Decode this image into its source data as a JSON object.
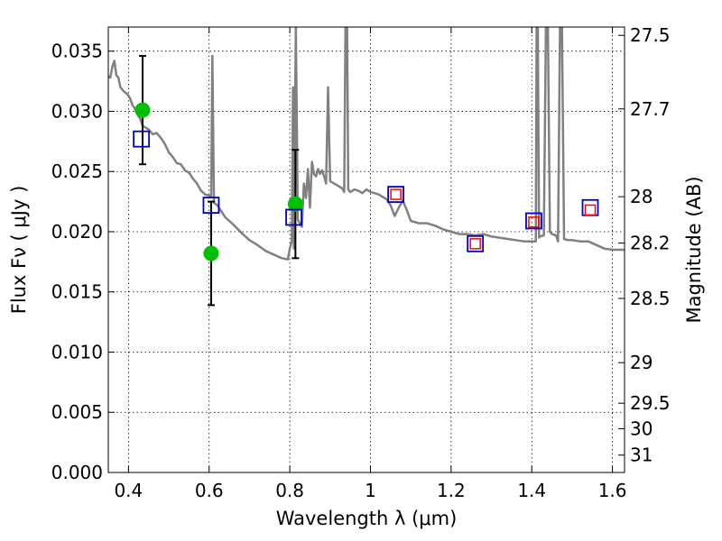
{
  "chart_data": {
    "type": "scatter",
    "xlabel": "Wavelength  λ (μm)",
    "ylabel": "Flux  Fν  ( μJy )",
    "y2label": "Magnitude (AB)",
    "xlim": [
      0.35,
      1.63
    ],
    "ylim": [
      0.0,
      0.037
    ],
    "grid": true,
    "x_ticks": [
      {
        "value": 0.4,
        "label": "0.4"
      },
      {
        "value": 0.6,
        "label": "0.6"
      },
      {
        "value": 0.8,
        "label": "0.8"
      },
      {
        "value": 1.0,
        "label": "1"
      },
      {
        "value": 1.2,
        "label": "1.2"
      },
      {
        "value": 1.4,
        "label": "1.4"
      },
      {
        "value": 1.6,
        "label": "1.6"
      }
    ],
    "y_ticks": [
      {
        "value": 0.0,
        "label": "0.000"
      },
      {
        "value": 0.005,
        "label": "0.005"
      },
      {
        "value": 0.01,
        "label": "0.010"
      },
      {
        "value": 0.015,
        "label": "0.015"
      },
      {
        "value": 0.02,
        "label": "0.020"
      },
      {
        "value": 0.025,
        "label": "0.025"
      },
      {
        "value": 0.03,
        "label": "0.030"
      },
      {
        "value": 0.035,
        "label": "0.035"
      }
    ],
    "y2_ticks": [
      {
        "value": 27.5,
        "label": "27.5"
      },
      {
        "value": 27.7,
        "label": "27.7"
      },
      {
        "value": 28.0,
        "label": "28"
      },
      {
        "value": 28.2,
        "label": "28.2"
      },
      {
        "value": 28.5,
        "label": "28.5"
      },
      {
        "value": 29.0,
        "label": "29"
      },
      {
        "value": 29.5,
        "label": "29.5"
      },
      {
        "value": 30.0,
        "label": "30"
      },
      {
        "value": 31.0,
        "label": "31"
      }
    ],
    "series": [
      {
        "kind": "line",
        "color": "#808080",
        "points": [
          [
            0.35,
            0.0329
          ],
          [
            0.355,
            0.0328
          ],
          [
            0.36,
            0.0337
          ],
          [
            0.365,
            0.0342
          ],
          [
            0.37,
            0.033
          ],
          [
            0.375,
            0.0328
          ],
          [
            0.38,
            0.032
          ],
          [
            0.385,
            0.0318
          ],
          [
            0.39,
            0.0316
          ],
          [
            0.395,
            0.0315
          ],
          [
            0.4,
            0.0313
          ],
          [
            0.405,
            0.031
          ],
          [
            0.41,
            0.0305
          ],
          [
            0.415,
            0.0303
          ],
          [
            0.42,
            0.0299
          ],
          [
            0.425,
            0.0296
          ],
          [
            0.43,
            0.0293
          ],
          [
            0.435,
            0.0288
          ],
          [
            0.44,
            0.0287
          ],
          [
            0.45,
            0.0285
          ],
          [
            0.46,
            0.0281
          ],
          [
            0.47,
            0.0282
          ],
          [
            0.48,
            0.0278
          ],
          [
            0.49,
            0.0273
          ],
          [
            0.5,
            0.0266
          ],
          [
            0.51,
            0.0262
          ],
          [
            0.52,
            0.0257
          ],
          [
            0.53,
            0.0256
          ],
          [
            0.54,
            0.0251
          ],
          [
            0.55,
            0.0249
          ],
          [
            0.56,
            0.0244
          ],
          [
            0.57,
            0.024
          ],
          [
            0.58,
            0.0234
          ],
          [
            0.59,
            0.0231
          ],
          [
            0.6,
            0.023
          ],
          [
            0.605,
            0.0229
          ],
          [
            0.608,
            0.0346
          ],
          [
            0.612,
            0.0224
          ],
          [
            0.62,
            0.0222
          ],
          [
            0.64,
            0.0212
          ],
          [
            0.66,
            0.0206
          ],
          [
            0.68,
            0.0199
          ],
          [
            0.7,
            0.0193
          ],
          [
            0.72,
            0.0189
          ],
          [
            0.74,
            0.0184
          ],
          [
            0.76,
            0.0181
          ],
          [
            0.78,
            0.0178
          ],
          [
            0.795,
            0.0177
          ],
          [
            0.8,
            0.0186
          ],
          [
            0.805,
            0.0192
          ],
          [
            0.808,
            0.032
          ],
          [
            0.81,
            0.0186
          ],
          [
            0.815,
            0.037
          ],
          [
            0.82,
            0.021
          ],
          [
            0.83,
            0.0204
          ],
          [
            0.835,
            0.024
          ],
          [
            0.84,
            0.0228
          ],
          [
            0.845,
            0.0252
          ],
          [
            0.85,
            0.022
          ],
          [
            0.855,
            0.0258
          ],
          [
            0.86,
            0.0248
          ],
          [
            0.865,
            0.0246
          ],
          [
            0.87,
            0.0252
          ],
          [
            0.875,
            0.0248
          ],
          [
            0.88,
            0.0251
          ],
          [
            0.885,
            0.0246
          ],
          [
            0.89,
            0.024
          ],
          [
            0.895,
            0.032
          ],
          [
            0.9,
            0.0242
          ],
          [
            0.91,
            0.024
          ],
          [
            0.92,
            0.0238
          ],
          [
            0.93,
            0.0236
          ],
          [
            0.935,
            0.0233
          ],
          [
            0.938,
            0.037
          ],
          [
            0.942,
            0.037
          ],
          [
            0.945,
            0.0235
          ],
          [
            0.95,
            0.0233
          ],
          [
            0.96,
            0.0235
          ],
          [
            0.97,
            0.0234
          ],
          [
            0.98,
            0.0232
          ],
          [
            0.99,
            0.0235
          ],
          [
            1.0,
            0.0233
          ],
          [
            1.01,
            0.0232
          ],
          [
            1.02,
            0.0231
          ],
          [
            1.03,
            0.0229
          ],
          [
            1.04,
            0.0227
          ],
          [
            1.05,
            0.0222
          ],
          [
            1.06,
            0.0213
          ],
          [
            1.07,
            0.022
          ],
          [
            1.08,
            0.0226
          ],
          [
            1.09,
            0.0218
          ],
          [
            1.1,
            0.0209
          ],
          [
            1.12,
            0.0207
          ],
          [
            1.14,
            0.0207
          ],
          [
            1.16,
            0.0205
          ],
          [
            1.18,
            0.0202
          ],
          [
            1.2,
            0.02
          ],
          [
            1.22,
            0.0198
          ],
          [
            1.24,
            0.0198
          ],
          [
            1.26,
            0.0197
          ],
          [
            1.28,
            0.0198
          ],
          [
            1.3,
            0.0196
          ],
          [
            1.32,
            0.0195
          ],
          [
            1.34,
            0.0194
          ],
          [
            1.36,
            0.0193
          ],
          [
            1.38,
            0.0192
          ],
          [
            1.4,
            0.0192
          ],
          [
            1.41,
            0.0192
          ],
          [
            1.412,
            0.037
          ],
          [
            1.415,
            0.037
          ],
          [
            1.418,
            0.0195
          ],
          [
            1.42,
            0.0196
          ],
          [
            1.43,
            0.0197
          ],
          [
            1.435,
            0.037
          ],
          [
            1.44,
            0.037
          ],
          [
            1.445,
            0.02
          ],
          [
            1.45,
            0.0198
          ],
          [
            1.46,
            0.0197
          ],
          [
            1.465,
            0.0192
          ],
          [
            1.47,
            0.037
          ],
          [
            1.475,
            0.037
          ],
          [
            1.48,
            0.0194
          ],
          [
            1.49,
            0.0193
          ],
          [
            1.5,
            0.0193
          ],
          [
            1.52,
            0.0192
          ],
          [
            1.54,
            0.0192
          ],
          [
            1.56,
            0.0189
          ],
          [
            1.58,
            0.0186
          ],
          [
            1.6,
            0.0185
          ],
          [
            1.62,
            0.0185
          ],
          [
            1.63,
            0.0185
          ]
        ]
      },
      {
        "kind": "markers",
        "marker": "circle",
        "color": "#00c000",
        "points": [
          {
            "x": 0.435,
            "y": 0.0301,
            "err": 0.0045
          },
          {
            "x": 0.605,
            "y": 0.0182,
            "err": 0.0043
          },
          {
            "x": 0.814,
            "y": 0.0223,
            "err": 0.0045
          }
        ]
      },
      {
        "kind": "markers",
        "marker": "open-square",
        "color": "#0000cc",
        "points": [
          {
            "x": 0.432,
            "y": 0.0277
          },
          {
            "x": 0.605,
            "y": 0.0222
          },
          {
            "x": 0.81,
            "y": 0.0212
          },
          {
            "x": 1.063,
            "y": 0.0231
          },
          {
            "x": 1.26,
            "y": 0.019
          },
          {
            "x": 1.405,
            "y": 0.0209
          },
          {
            "x": 1.545,
            "y": 0.022
          }
        ]
      },
      {
        "kind": "markers",
        "marker": "open-square-small",
        "color": "#ff0000",
        "points": [
          {
            "x": 1.063,
            "y": 0.0231
          },
          {
            "x": 1.26,
            "y": 0.019
          },
          {
            "x": 1.405,
            "y": 0.0208
          },
          {
            "x": 1.545,
            "y": 0.0218
          }
        ]
      }
    ]
  }
}
